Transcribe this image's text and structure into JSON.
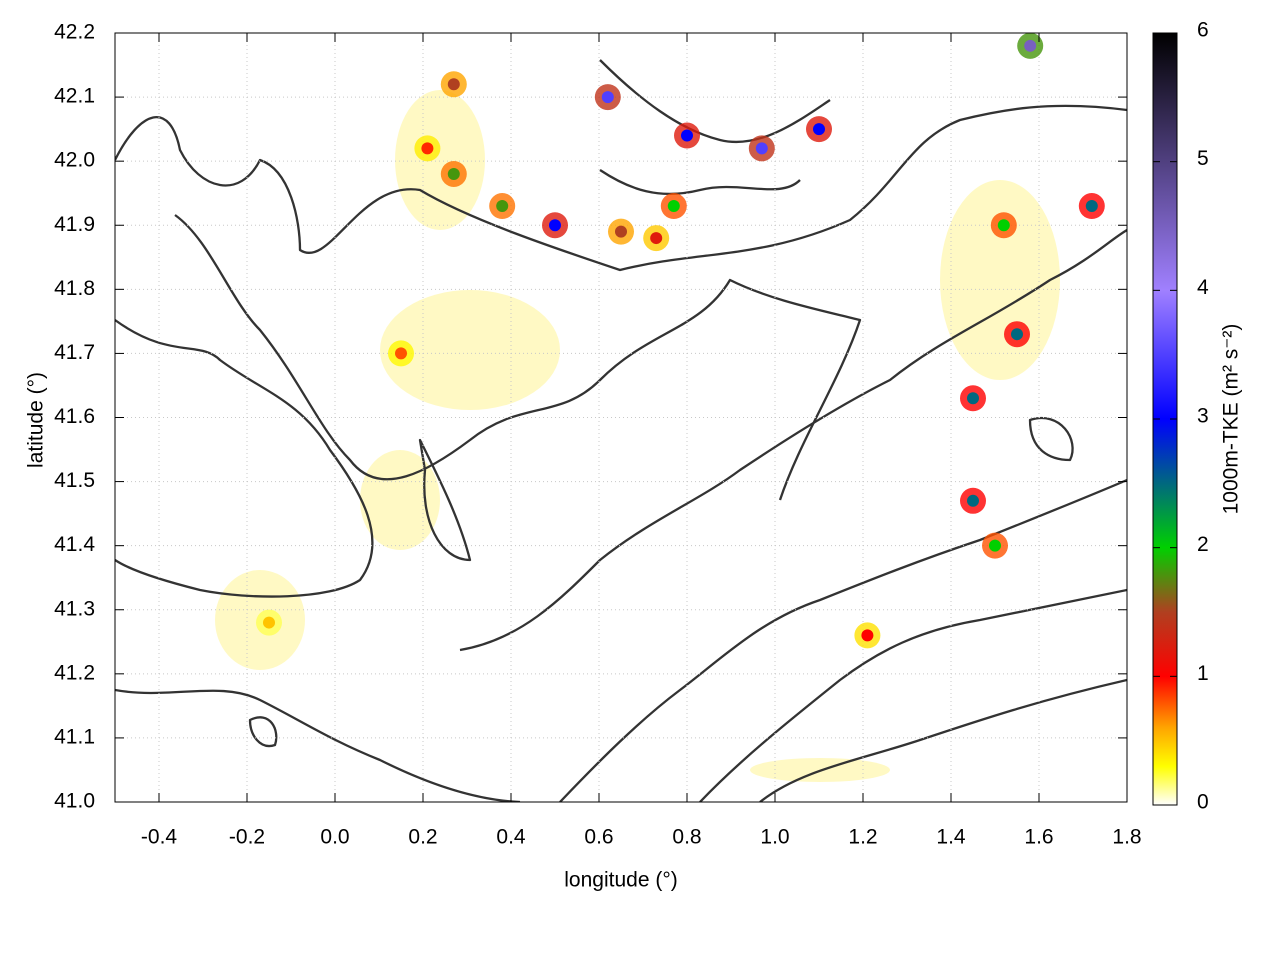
{
  "chart_data": {
    "type": "heatmap",
    "xlabel": "longitude (°)",
    "ylabel": "latitude (°)",
    "colorbar_label": "1000m-TKE (m² s⁻²)",
    "xlim": [
      -0.5,
      1.8
    ],
    "ylim": [
      41.0,
      42.2
    ],
    "xticks": [
      -0.4,
      -0.2,
      {
        "value": 0,
        "label": "0.0"
      },
      0.2,
      0.4,
      0.6,
      0.8,
      {
        "value": 1,
        "label": "1.0"
      },
      1.2,
      1.4,
      1.6,
      1.8
    ],
    "yticks": [
      {
        "value": 41,
        "label": "41.0"
      },
      41.1,
      41.2,
      41.3,
      41.4,
      41.5,
      41.6,
      41.7,
      41.8,
      41.9,
      {
        "value": 42,
        "label": "42.0"
      },
      42.1,
      42.2
    ],
    "clim": [
      0,
      6
    ],
    "cticks": [
      0,
      1,
      2,
      3,
      4,
      5,
      6
    ],
    "grid": true,
    "colormap": [
      {
        "value": 0,
        "color": "#ffffff"
      },
      {
        "value": 0.3,
        "color": "#ffff00"
      },
      {
        "value": 0.6,
        "color": "#ffa500"
      },
      {
        "value": 1,
        "color": "#ff0000"
      },
      {
        "value": 1.5,
        "color": "#b04020"
      },
      {
        "value": 2,
        "color": "#00d000"
      },
      {
        "value": 3,
        "color": "#0000ff"
      },
      {
        "value": 4,
        "color": "#a080ff"
      },
      {
        "value": 5,
        "color": "#504080"
      },
      {
        "value": 6,
        "color": "#000000"
      }
    ],
    "hotspots": {
      "x": [
        0.21,
        0.27,
        0.38,
        0.5,
        0.65,
        0.73,
        0.77,
        0.62,
        0.8,
        0.97,
        1.1,
        1.58,
        1.72,
        1.52,
        1.55,
        1.45,
        1.45,
        1.5,
        -0.15,
        0.15,
        1.21,
        0.27
      ],
      "y": [
        42.02,
        41.98,
        41.93,
        41.9,
        41.89,
        41.88,
        41.93,
        42.1,
        42.04,
        42.02,
        42.05,
        42.18,
        41.93,
        41.9,
        41.73,
        41.63,
        41.47,
        41.4,
        41.28,
        41.7,
        41.26,
        42.12
      ],
      "values": [
        0.9,
        1.8,
        1.8,
        3,
        1.5,
        1.2,
        2,
        3.5,
        3,
        3.5,
        3,
        4.5,
        2.5,
        2,
        2.5,
        2.5,
        2.5,
        2,
        0.5,
        0.8,
        1,
        1.5
      ]
    }
  }
}
